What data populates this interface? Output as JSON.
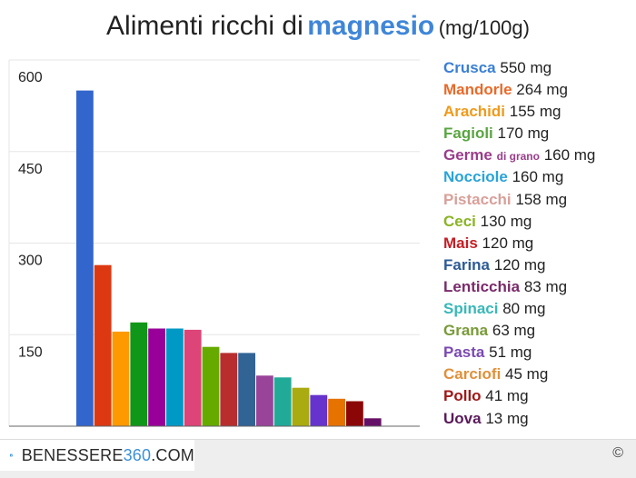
{
  "title": {
    "prefix": "Alimenti ricchi di",
    "highlight": "magnesio",
    "unit": "(mg/100g)",
    "highlight_color": "#3f86d8"
  },
  "chart_data": {
    "type": "bar",
    "title": "Alimenti ricchi di magnesio (mg/100g)",
    "xlabel": "",
    "ylabel": "",
    "ylim": [
      0,
      600
    ],
    "yticks": [
      150,
      300,
      450,
      600
    ],
    "grid": true,
    "legend_position": "right",
    "categories": [
      "Crusca",
      "Mandorle",
      "Arachidi",
      "Fagioli",
      "Germe di grano",
      "Nocciole",
      "Pistacchi",
      "Ceci",
      "Mais",
      "Farina",
      "Lenticchia",
      "Spinaci",
      "Grana",
      "Pasta",
      "Carciofi",
      "Pollo",
      "Uova"
    ],
    "values": [
      550,
      264,
      155,
      170,
      160,
      160,
      158,
      130,
      120,
      120,
      83,
      80,
      63,
      51,
      45,
      41,
      13
    ],
    "bar_colors": [
      "#3366cc",
      "#dc3912",
      "#ff9900",
      "#109618",
      "#990099",
      "#0099c6",
      "#dd4477",
      "#66aa00",
      "#b82e2e",
      "#316395",
      "#994499",
      "#22aa99",
      "#aaaa11",
      "#6633cc",
      "#e67300",
      "#8b0707",
      "#651067"
    ],
    "label_colors": [
      "#3a7fd5",
      "#e86a2a",
      "#f09a1a",
      "#5aa542",
      "#9a3d8a",
      "#2aa4d8",
      "#d8a09a",
      "#8ab424",
      "#c41e24",
      "#2e5b94",
      "#7a2a6a",
      "#3ab8b8",
      "#7a9a3a",
      "#7a4ab0",
      "#e0903a",
      "#a01818",
      "#5a1a5a"
    ]
  },
  "legend_items": [
    {
      "name": "Crusca",
      "value": "550 mg"
    },
    {
      "name": "Mandorle",
      "value": "264 mg"
    },
    {
      "name": "Arachidi",
      "value": "155 mg"
    },
    {
      "name": "Fagioli",
      "value": "170 mg"
    },
    {
      "name": "Germe",
      "name_small": "di grano",
      "value": "160 mg"
    },
    {
      "name": "Nocciole",
      "value": "160 mg"
    },
    {
      "name": "Pistacchi",
      "value": "158 mg"
    },
    {
      "name": "Ceci",
      "value": "130 mg"
    },
    {
      "name": "Mais",
      "value": "120 mg"
    },
    {
      "name": "Farina",
      "value": "120 mg"
    },
    {
      "name": "Lenticchia",
      "value": "83 mg"
    },
    {
      "name": "Spinaci",
      "value": "80 mg"
    },
    {
      "name": "Grana",
      "value": "63 mg"
    },
    {
      "name": "Pasta",
      "value": "51 mg"
    },
    {
      "name": "Carciofi",
      "value": "45 mg"
    },
    {
      "name": "Pollo",
      "value": "41 mg"
    },
    {
      "name": "Uova",
      "value": "13 mg"
    }
  ],
  "footer": {
    "brand_prefix": "BENESSERE",
    "brand_number": "360",
    "brand_suffix": ".COM",
    "copyright": "©"
  }
}
